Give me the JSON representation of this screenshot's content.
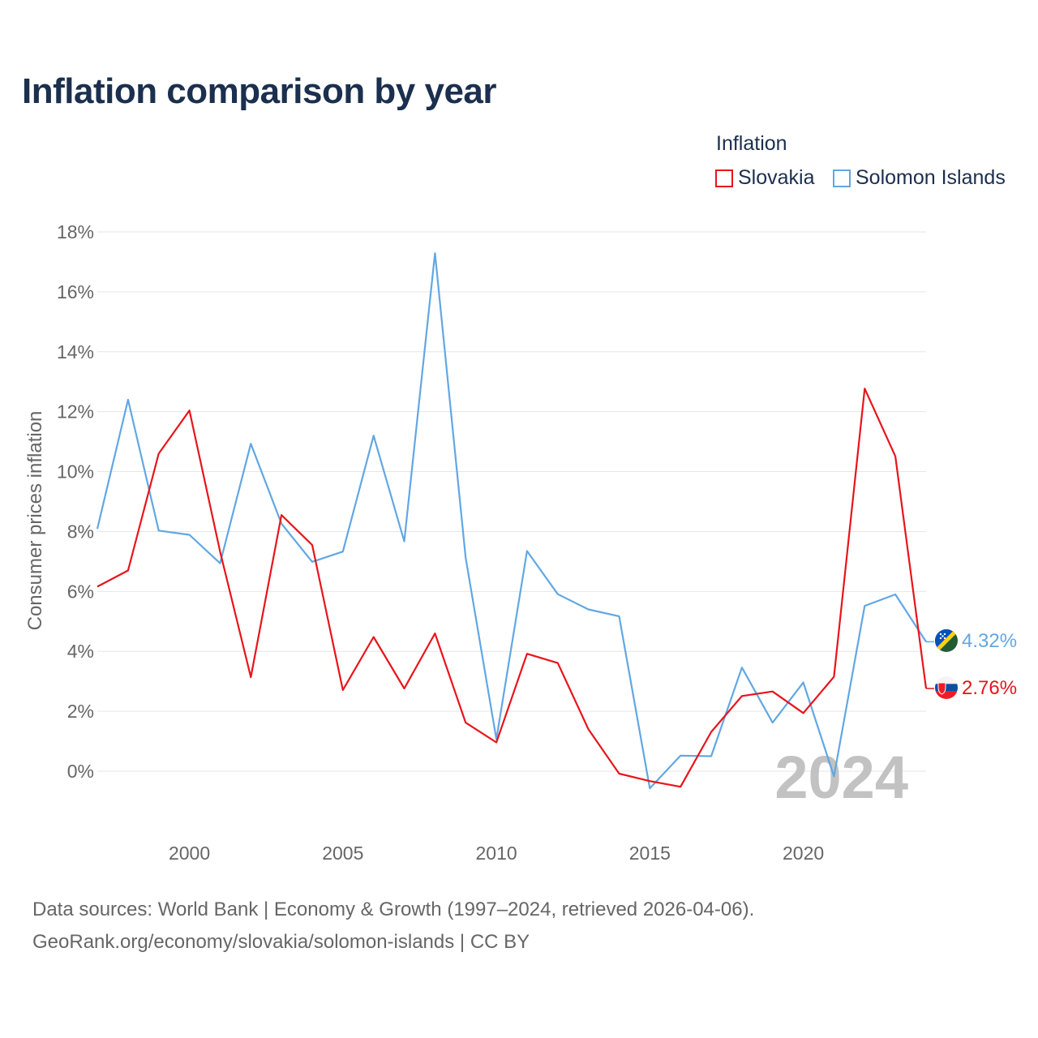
{
  "title": "Inflation comparison by year",
  "legend": {
    "title": "Inflation",
    "items": [
      "Slovakia",
      "Solomon Islands"
    ]
  },
  "sources": {
    "line1": "Data sources: World Bank | Economy & Growth (1997–2024, retrieved 2026-04-06).",
    "line2": "GeoRank.org/economy/slovakia/solomon-islands | CC BY"
  },
  "colors": {
    "slovakia": "#e8141b",
    "solomon": "#62a7e3",
    "grid": "#e6e6e6",
    "axis_text": "#666666",
    "watermark": "#c2c2c2"
  },
  "chart_data": {
    "type": "line",
    "ylabel": "Consumer prices inflation",
    "xlabel": "",
    "x": [
      1997,
      1998,
      1999,
      2000,
      2001,
      2002,
      2003,
      2004,
      2005,
      2006,
      2007,
      2008,
      2009,
      2010,
      2011,
      2012,
      2013,
      2014,
      2015,
      2016,
      2017,
      2018,
      2019,
      2020,
      2021,
      2022,
      2023,
      2024
    ],
    "xlim": [
      1997,
      2024
    ],
    "ylim": [
      -2,
      18
    ],
    "x_ticks": [
      2000,
      2005,
      2010,
      2015,
      2020
    ],
    "y_ticks": [
      0,
      2,
      4,
      6,
      8,
      10,
      12,
      14,
      16,
      18
    ],
    "y_tick_labels": [
      "0%",
      "2%",
      "4%",
      "6%",
      "8%",
      "10%",
      "12%",
      "14%",
      "16%",
      "18%"
    ],
    "x_tick_labels": [
      "2000",
      "2005",
      "2010",
      "2015",
      "2020"
    ],
    "year_watermark": "2024",
    "series": [
      {
        "name": "Slovakia",
        "color": "#e8141b",
        "end_label": "2.76%",
        "flag_icon": "slovakia-flag-icon",
        "values": [
          6.16,
          6.7,
          10.6,
          12.04,
          7.33,
          3.14,
          8.55,
          7.55,
          2.71,
          4.48,
          2.76,
          4.6,
          1.62,
          0.96,
          3.92,
          3.61,
          1.4,
          -0.08,
          -0.33,
          -0.52,
          1.31,
          2.51,
          2.66,
          1.94,
          3.15,
          12.77,
          10.51,
          2.76
        ]
      },
      {
        "name": "Solomon Islands",
        "color": "#62a7e3",
        "end_label": "4.32%",
        "flag_icon": "solomon-islands-flag-icon",
        "values": [
          8.09,
          12.4,
          8.03,
          7.89,
          6.94,
          10.93,
          8.26,
          6.99,
          7.33,
          11.2,
          7.67,
          17.29,
          7.13,
          1.07,
          7.35,
          5.91,
          5.4,
          5.17,
          -0.57,
          0.52,
          0.5,
          3.46,
          1.62,
          2.96,
          -0.17,
          5.52,
          5.9,
          4.32
        ]
      }
    ]
  }
}
